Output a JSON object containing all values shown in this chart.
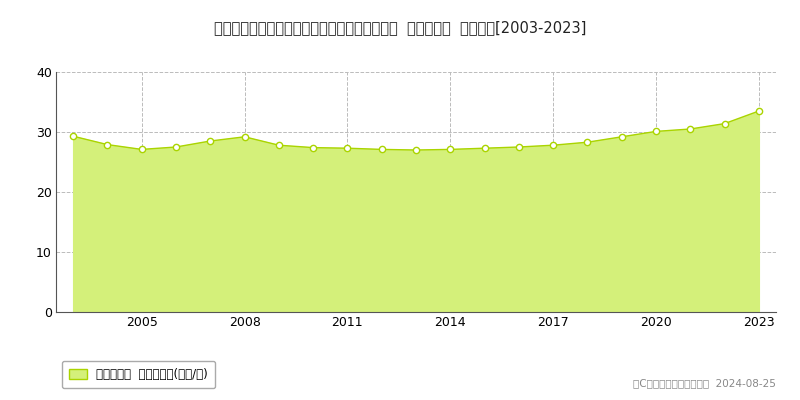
{
  "title": "愛知県知多郡東浦町大字藤江字ふじが丘４番７  基準地価格  地価推移[2003-2023]",
  "years": [
    2003,
    2004,
    2005,
    2006,
    2007,
    2008,
    2009,
    2010,
    2011,
    2012,
    2013,
    2014,
    2015,
    2016,
    2017,
    2018,
    2019,
    2020,
    2021,
    2022,
    2023
  ],
  "values": [
    29.3,
    27.9,
    27.1,
    27.5,
    28.5,
    29.2,
    27.8,
    27.4,
    27.3,
    27.1,
    27.0,
    27.1,
    27.3,
    27.5,
    27.8,
    28.3,
    29.2,
    30.1,
    30.5,
    31.4,
    33.5
  ],
  "line_color": "#aad400",
  "fill_color": "#d4f07a",
  "fill_alpha": 1.0,
  "marker_color": "white",
  "marker_edge_color": "#aad400",
  "ylim": [
    0,
    40
  ],
  "yticks": [
    0,
    10,
    20,
    30,
    40
  ],
  "grid_color": "#bbbbbb",
  "grid_style": "--",
  "background_color": "#ffffff",
  "legend_label": "基準地価格  平均坪単価(万円/坪)",
  "copyright_text": "（C）土地価格ドットコム  2024-08-25",
  "title_fontsize": 10.5,
  "axis_fontsize": 9,
  "legend_fontsize": 8.5,
  "xtick_display": [
    2005,
    2008,
    2011,
    2014,
    2017,
    2020,
    2023
  ]
}
